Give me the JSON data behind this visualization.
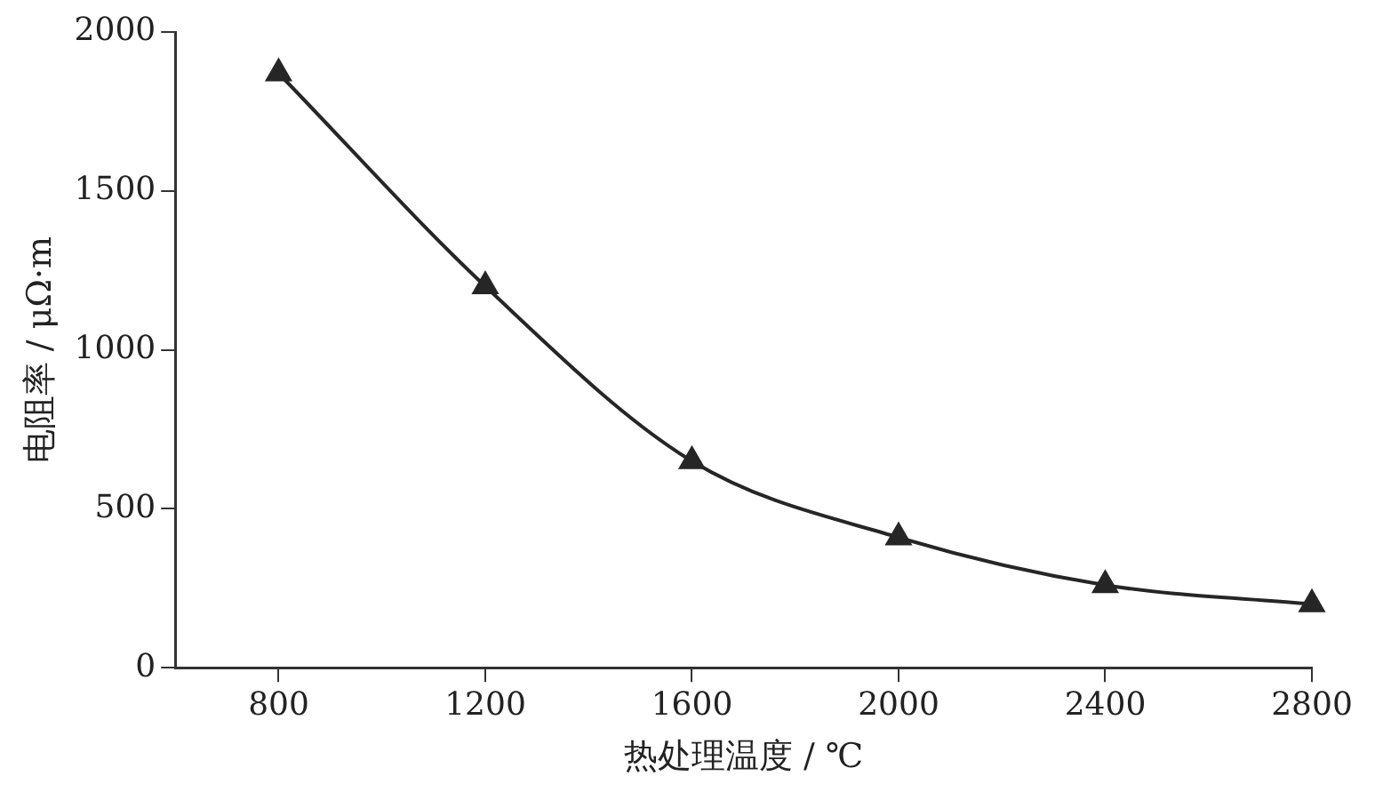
{
  "chart_data": {
    "type": "line",
    "xlabel": "热处理温度 / ℃",
    "ylabel": "电阻率 / μΩ·m",
    "x": [
      800,
      1200,
      1600,
      2000,
      2400,
      2800
    ],
    "series": [
      {
        "color": "#262626",
        "values": [
          1870,
          1200,
          650,
          410,
          260,
          200
        ]
      }
    ],
    "xlim": [
      600,
      2800
    ],
    "xticks": [
      800,
      1200,
      1600,
      2000,
      2400,
      2800
    ],
    "ylim": [
      0,
      2000
    ],
    "yticks": [
      0,
      500,
      1000,
      1500,
      2000
    ],
    "grid": false,
    "legend": false,
    "marker": "triangle",
    "line_style": "solid"
  }
}
